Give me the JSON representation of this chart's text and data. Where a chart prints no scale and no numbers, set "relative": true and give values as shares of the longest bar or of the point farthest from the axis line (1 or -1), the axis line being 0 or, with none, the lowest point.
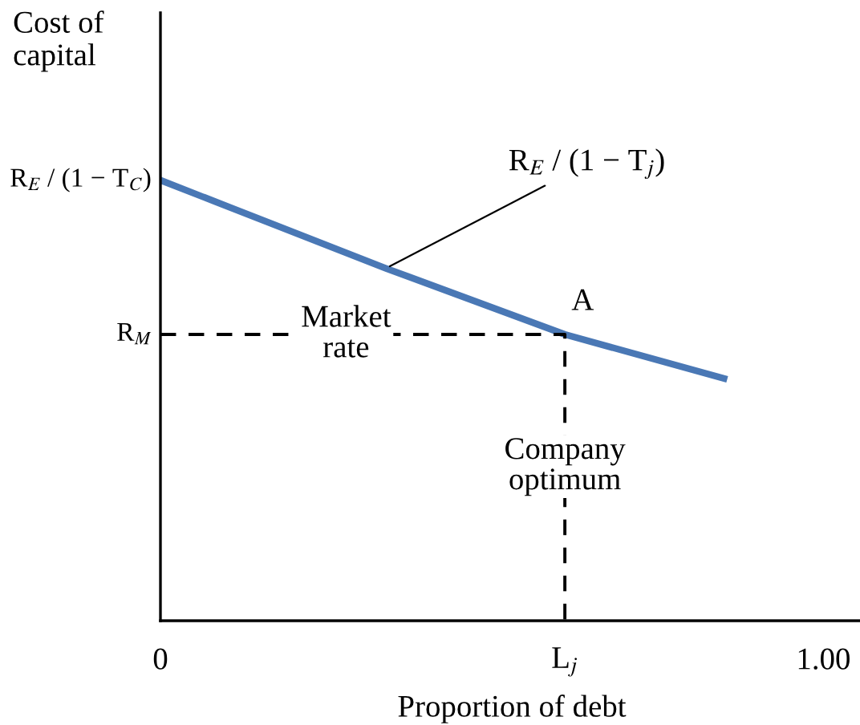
{
  "chart_data": {
    "type": "line",
    "relative": true,
    "xlabel": "Proportion of debt",
    "ylabel": "Cost of\ncapital",
    "xlim": [
      0,
      1.06
    ],
    "xticks": [
      0,
      {
        "value": 0.61,
        "label": "L$_{j}$"
      },
      {
        "value": 1.0,
        "label": "1.00"
      }
    ],
    "grid": false,
    "legend": false,
    "tick_labels": "x",
    "series": [
      {
        "color": "#4a78b5",
        "line_style": "solid",
        "x": [
          0,
          0.17,
          0.34,
          0.61,
          0.85
        ],
        "values": [
          1,
          0.9,
          0.8,
          0.65,
          0.55
        ]
      },
      {
        "color": "#000000",
        "line_style": "dashed",
        "x": [
          0,
          0.61,
          0.61
        ],
        "values": [
          0.65,
          0.65,
          0
        ]
      }
    ],
    "annotations": [
      {
        "text": "R$_{E}$ / (1 − T$_{C}$)",
        "x": 0,
        "y": 1
      },
      {
        "text": "R$_{M}$",
        "x": 0,
        "y": 0.65
      },
      {
        "text": "R$_{E}$ / (1 − T$_{j}$)",
        "x": 0.34,
        "y": 0.8
      },
      {
        "text": "A",
        "x": 0.61,
        "y": 0.65
      },
      "Market\nrate",
      "Company\noptimum"
    ]
  }
}
